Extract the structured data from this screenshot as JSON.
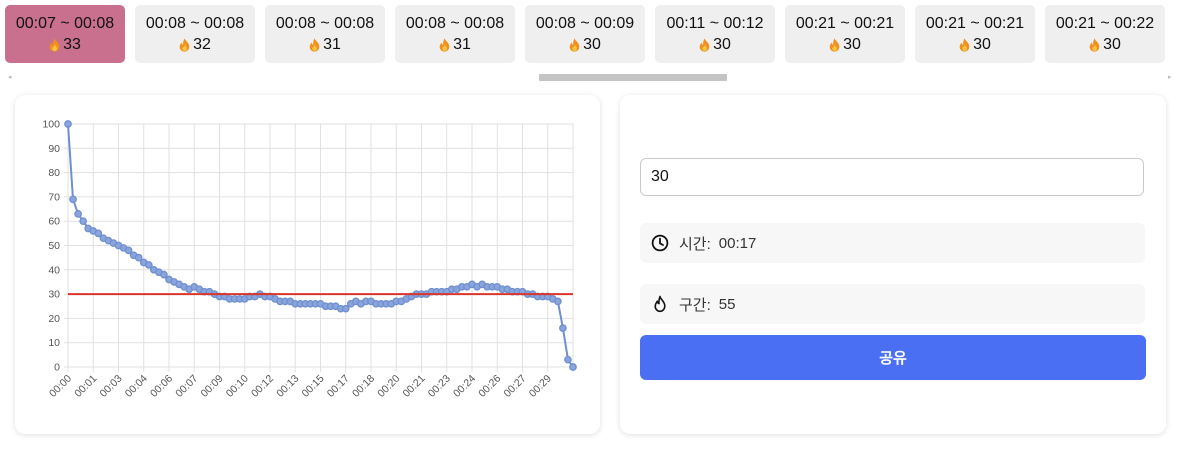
{
  "segments": [
    {
      "range": "00:07 ~ 00:08",
      "value": "33",
      "active": true
    },
    {
      "range": "00:08 ~ 00:08",
      "value": "32",
      "active": false
    },
    {
      "range": "00:08 ~ 00:08",
      "value": "31",
      "active": false
    },
    {
      "range": "00:08 ~ 00:08",
      "value": "31",
      "active": false
    },
    {
      "range": "00:08 ~ 00:09",
      "value": "30",
      "active": false
    },
    {
      "range": "00:11 ~ 00:12",
      "value": "30",
      "active": false
    },
    {
      "range": "00:21 ~ 00:21",
      "value": "30",
      "active": false
    },
    {
      "range": "00:21 ~ 00:21",
      "value": "30",
      "active": false
    },
    {
      "range": "00:21 ~ 00:22",
      "value": "30",
      "active": false
    }
  ],
  "colors": {
    "active_card": "#c8708e",
    "line": "#6f8fcf",
    "threshold": "#d9362b",
    "button": "#4a6ff2"
  },
  "chart_data": {
    "type": "line",
    "title": "",
    "xlabel": "",
    "ylabel": "",
    "ylim": [
      0,
      100
    ],
    "yticks": [
      0,
      10,
      20,
      30,
      40,
      50,
      60,
      70,
      80,
      90,
      100
    ],
    "xticks": [
      "00:00",
      "00:01",
      "00:03",
      "00:04",
      "00:06",
      "00:07",
      "00:09",
      "00:10",
      "00:12",
      "00:13",
      "00:15",
      "00:17",
      "00:18",
      "00:20",
      "00:21",
      "00:23",
      "00:24",
      "00:26",
      "00:27",
      "00:29"
    ],
    "grid": true,
    "threshold": 30,
    "values": [
      100,
      69,
      63,
      60,
      57,
      56,
      55,
      53,
      52,
      51,
      50,
      49,
      48,
      46,
      45,
      43,
      42,
      40,
      39,
      38,
      36,
      35,
      34,
      33,
      32,
      33,
      32,
      31,
      31,
      30,
      29,
      29,
      28,
      28,
      28,
      28,
      29,
      29,
      30,
      29,
      29,
      28,
      27,
      27,
      27,
      26,
      26,
      26,
      26,
      26,
      26,
      25,
      25,
      25,
      24,
      24,
      26,
      27,
      26,
      27,
      27,
      26,
      26,
      26,
      26,
      27,
      27,
      28,
      29,
      30,
      30,
      30,
      31,
      31,
      31,
      31,
      32,
      32,
      33,
      33,
      34,
      33,
      34,
      33,
      33,
      33,
      32,
      32,
      31,
      31,
      31,
      30,
      30,
      29,
      29,
      29,
      28,
      27,
      16,
      3,
      0
    ]
  },
  "form": {
    "input_value": "30",
    "time_label": "시간:",
    "time_value": "00:17",
    "section_label": "구간:",
    "section_value": "55",
    "share_label": "공유"
  }
}
